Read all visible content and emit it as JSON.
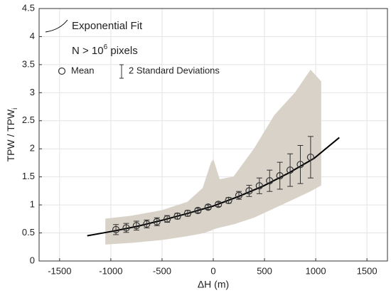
{
  "chart_data": {
    "type": "scatter",
    "x_label": "ΔH (m)",
    "y_label": {
      "text": "TPW / TPW",
      "sub": "i"
    },
    "annotation": {
      "text": "N > 10",
      "sup": "6",
      "rest": " pixels"
    },
    "xlim": [
      -1700,
      1700
    ],
    "xticks": [
      -1500,
      -1000,
      -500,
      0,
      500,
      1000,
      1500
    ],
    "ylim": [
      0,
      4.5
    ],
    "yticks": [
      0,
      0.5,
      1,
      1.5,
      2,
      2.5,
      3,
      3.5,
      4,
      4.5
    ],
    "grid": true,
    "cloud": {
      "color": "#d8d2c8",
      "x": [
        -1050,
        -800,
        -500,
        -250,
        -100,
        -20,
        0,
        60,
        200,
        400,
        600,
        800,
        950,
        1050
      ],
      "high": [
        0.75,
        0.8,
        0.9,
        1.05,
        1.3,
        1.75,
        1.8,
        1.45,
        1.5,
        2.0,
        2.6,
        3.0,
        3.4,
        3.2
      ],
      "low": [
        0.3,
        0.33,
        0.38,
        0.45,
        0.5,
        0.55,
        0.57,
        0.6,
        0.66,
        0.78,
        0.95,
        1.12,
        1.25,
        1.35
      ]
    },
    "fit": {
      "name": "Exponential Fit",
      "color": "#000000",
      "x": [
        -1230,
        -984,
        -738,
        -492,
        -246,
        0,
        246,
        492,
        738,
        984,
        1230
      ],
      "values": [
        0.45,
        0.53,
        0.62,
        0.73,
        0.85,
        0.98,
        1.15,
        1.34,
        1.57,
        1.83,
        2.2
      ]
    },
    "mean": {
      "name": "Mean",
      "error_name": "2 Standard Deviations",
      "color": "#333333",
      "x": [
        -950,
        -850,
        -750,
        -650,
        -550,
        -450,
        -350,
        -250,
        -150,
        -50,
        50,
        150,
        250,
        350,
        450,
        550,
        650,
        750,
        850,
        950
      ],
      "values": [
        0.56,
        0.59,
        0.63,
        0.66,
        0.7,
        0.75,
        0.8,
        0.85,
        0.9,
        0.96,
        1.01,
        1.08,
        1.17,
        1.25,
        1.34,
        1.43,
        1.52,
        1.62,
        1.72,
        1.85
      ],
      "errors": [
        0.09,
        0.08,
        0.08,
        0.07,
        0.07,
        0.06,
        0.05,
        0.05,
        0.04,
        0.04,
        0.04,
        0.05,
        0.07,
        0.1,
        0.14,
        0.19,
        0.24,
        0.29,
        0.34,
        0.37
      ]
    }
  }
}
